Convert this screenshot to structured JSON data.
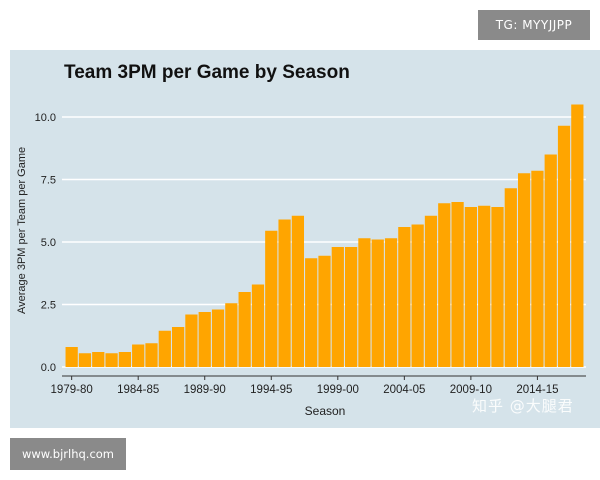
{
  "badges": {
    "top": "TG: MYYJJPP",
    "bottom": "www.bjrlhq.com"
  },
  "watermark": "知乎 @大腿君",
  "colors": {
    "bar": "#ffa500",
    "panel": "#d5e3ea",
    "grid": "#ffffff"
  },
  "chart_data": {
    "type": "bar",
    "title": "Team 3PM per Game by Season",
    "xlabel": "Season",
    "ylabel": "Average 3PM per Team per Game",
    "ylim": [
      0,
      10.5
    ],
    "yticks": [
      "0.0",
      "2.5",
      "5.0",
      "7.5",
      "10.0"
    ],
    "ytick_values": [
      0,
      2.5,
      5,
      7.5,
      10
    ],
    "xtick_labels": [
      "1979-80",
      "1984-85",
      "1989-90",
      "1994-95",
      "1999-00",
      "2004-05",
      "2009-10",
      "2014-15"
    ],
    "xtick_indices": [
      0,
      5,
      10,
      15,
      20,
      25,
      30,
      35
    ],
    "grid": true,
    "categories": [
      "1979-80",
      "1980-81",
      "1981-82",
      "1982-83",
      "1983-84",
      "1984-85",
      "1985-86",
      "1986-87",
      "1987-88",
      "1988-89",
      "1989-90",
      "1990-91",
      "1991-92",
      "1992-93",
      "1993-94",
      "1994-95",
      "1995-96",
      "1996-97",
      "1997-98",
      "1998-99",
      "1999-00",
      "2000-01",
      "2001-02",
      "2002-03",
      "2003-04",
      "2004-05",
      "2005-06",
      "2006-07",
      "2007-08",
      "2008-09",
      "2009-10",
      "2010-11",
      "2011-12",
      "2012-13",
      "2013-14",
      "2014-15",
      "2015-16",
      "2016-17",
      "2017-18"
    ],
    "values": [
      0.8,
      0.55,
      0.6,
      0.55,
      0.6,
      0.9,
      0.95,
      1.45,
      1.6,
      2.1,
      2.2,
      2.3,
      2.55,
      3.0,
      3.3,
      5.45,
      5.9,
      6.05,
      4.35,
      4.45,
      4.8,
      4.8,
      5.15,
      5.1,
      5.15,
      5.6,
      5.7,
      6.05,
      6.55,
      6.6,
      6.4,
      6.45,
      6.4,
      7.15,
      7.75,
      7.85,
      8.5,
      9.65,
      10.5
    ]
  }
}
